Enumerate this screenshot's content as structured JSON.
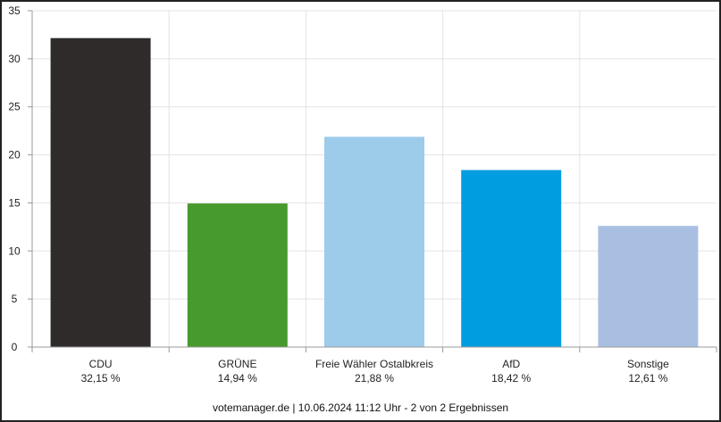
{
  "chart_data": {
    "type": "bar",
    "categories": [
      "CDU",
      "GRÜNE",
      "Freie Wähler Ostalbkreis",
      "AfD",
      "Sonstige"
    ],
    "values": [
      32.15,
      14.94,
      21.88,
      18.42,
      12.61
    ],
    "value_labels": [
      "32,15 %",
      "14,94 %",
      "21,88 %",
      "18,42 %",
      "12,61 %"
    ],
    "colors": [
      "#2f2b2b",
      "#479a2c",
      "#9dcbea",
      "#009ee0",
      "#a9bfe2"
    ],
    "ylim": [
      0,
      35
    ],
    "yticks": [
      0,
      5,
      10,
      15,
      20,
      25,
      30,
      35
    ],
    "grid": true,
    "title": "",
    "xlabel": "",
    "ylabel": ""
  },
  "footer": {
    "text": "votemanager.de | 10.06.2024 11:12 Uhr - 2 von 2 Ergebnissen"
  }
}
